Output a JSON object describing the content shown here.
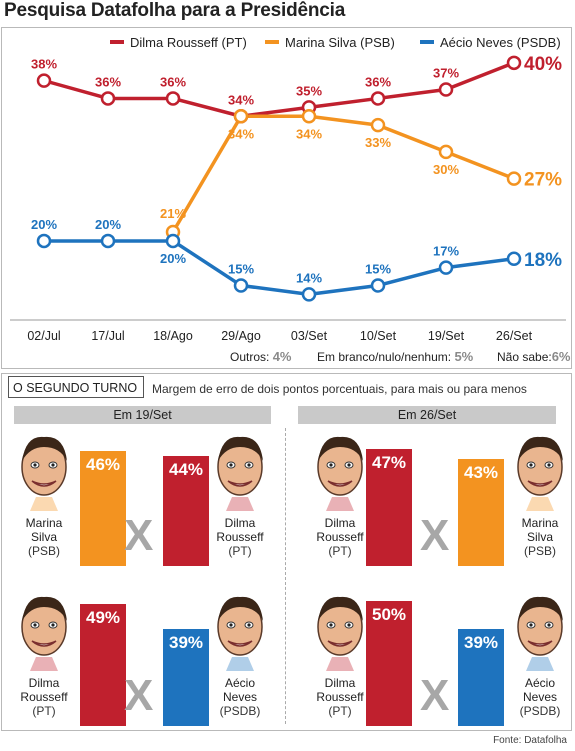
{
  "title": "Pesquisa Datafolha para a Presidência",
  "chart_data": {
    "type": "line",
    "categories": [
      "02/Jul",
      "17/Jul",
      "18/Ago",
      "29/Ago",
      "03/Set",
      "10/Set",
      "19/Set",
      "26/Set"
    ],
    "ylim": [
      10,
      42
    ],
    "grid": false,
    "legend_position": "top",
    "series": [
      {
        "name": "Dilma Rousseff (PT)",
        "color": "#c0202e",
        "values": [
          38,
          36,
          36,
          34,
          35,
          36,
          37,
          40
        ],
        "labels": [
          "38%",
          "36%",
          "36%",
          "34%",
          "35%",
          "36%",
          "37%",
          "40%"
        ]
      },
      {
        "name": "Marina Silva (PSB)",
        "color": "#f39320",
        "values": [
          null,
          null,
          21,
          34,
          34,
          33,
          30,
          27
        ],
        "labels": [
          "",
          "",
          "21%",
          "34%",
          "34%",
          "33%",
          "30%",
          "27%"
        ]
      },
      {
        "name": "Aécio Neves (PSDB)",
        "color": "#1e73be",
        "values": [
          20,
          20,
          20,
          15,
          14,
          15,
          17,
          18
        ],
        "labels": [
          "20%",
          "20%",
          "20%",
          "15%",
          "14%",
          "15%",
          "17%",
          "18%"
        ]
      }
    ]
  },
  "others": {
    "outros_label": "Outros:",
    "outros_value": "4%",
    "branco_label": "Em branco/nulo/nenhum:",
    "branco_value": "5%",
    "naosabe_label": "Não sabe:",
    "naosabe_value": "6%"
  },
  "segundo_turno": {
    "title": "O SEGUNDO TURNO",
    "note": "Margem de erro de dois pontos porcentuais, para mais ou para menos",
    "vs": "X",
    "source": "Fonte: Datafolha",
    "colors": {
      "pt": "#c0202e",
      "psb": "#f39320",
      "psdb": "#1e73be"
    },
    "dates": [
      {
        "label": "Em 19/Set",
        "matchups": [
          {
            "left": {
              "name1": "Marina",
              "name2": "Silva",
              "party": "(PSB)",
              "value": 46,
              "pct": "46%"
            },
            "right": {
              "name1": "Dilma",
              "name2": "Rousseff",
              "party": "(PT)",
              "value": 44,
              "pct": "44%"
            }
          },
          {
            "left": {
              "name1": "Dilma",
              "name2": "Rousseff",
              "party": "(PT)",
              "value": 49,
              "pct": "49%"
            },
            "right": {
              "name1": "Aécio",
              "name2": "Neves",
              "party": "(PSDB)",
              "value": 39,
              "pct": "39%"
            }
          }
        ]
      },
      {
        "label": "Em 26/Set",
        "matchups": [
          {
            "left": {
              "name1": "Dilma",
              "name2": "Rousseff",
              "party": "(PT)",
              "value": 47,
              "pct": "47%"
            },
            "right": {
              "name1": "Marina",
              "name2": "Silva",
              "party": "(PSB)",
              "value": 43,
              "pct": "43%"
            }
          },
          {
            "left": {
              "name1": "Dilma",
              "name2": "Rousseff",
              "party": "(PT)",
              "value": 50,
              "pct": "50%"
            },
            "right": {
              "name1": "Aécio",
              "name2": "Neves",
              "party": "(PSDB)",
              "value": 39,
              "pct": "39%"
            }
          }
        ]
      }
    ]
  }
}
